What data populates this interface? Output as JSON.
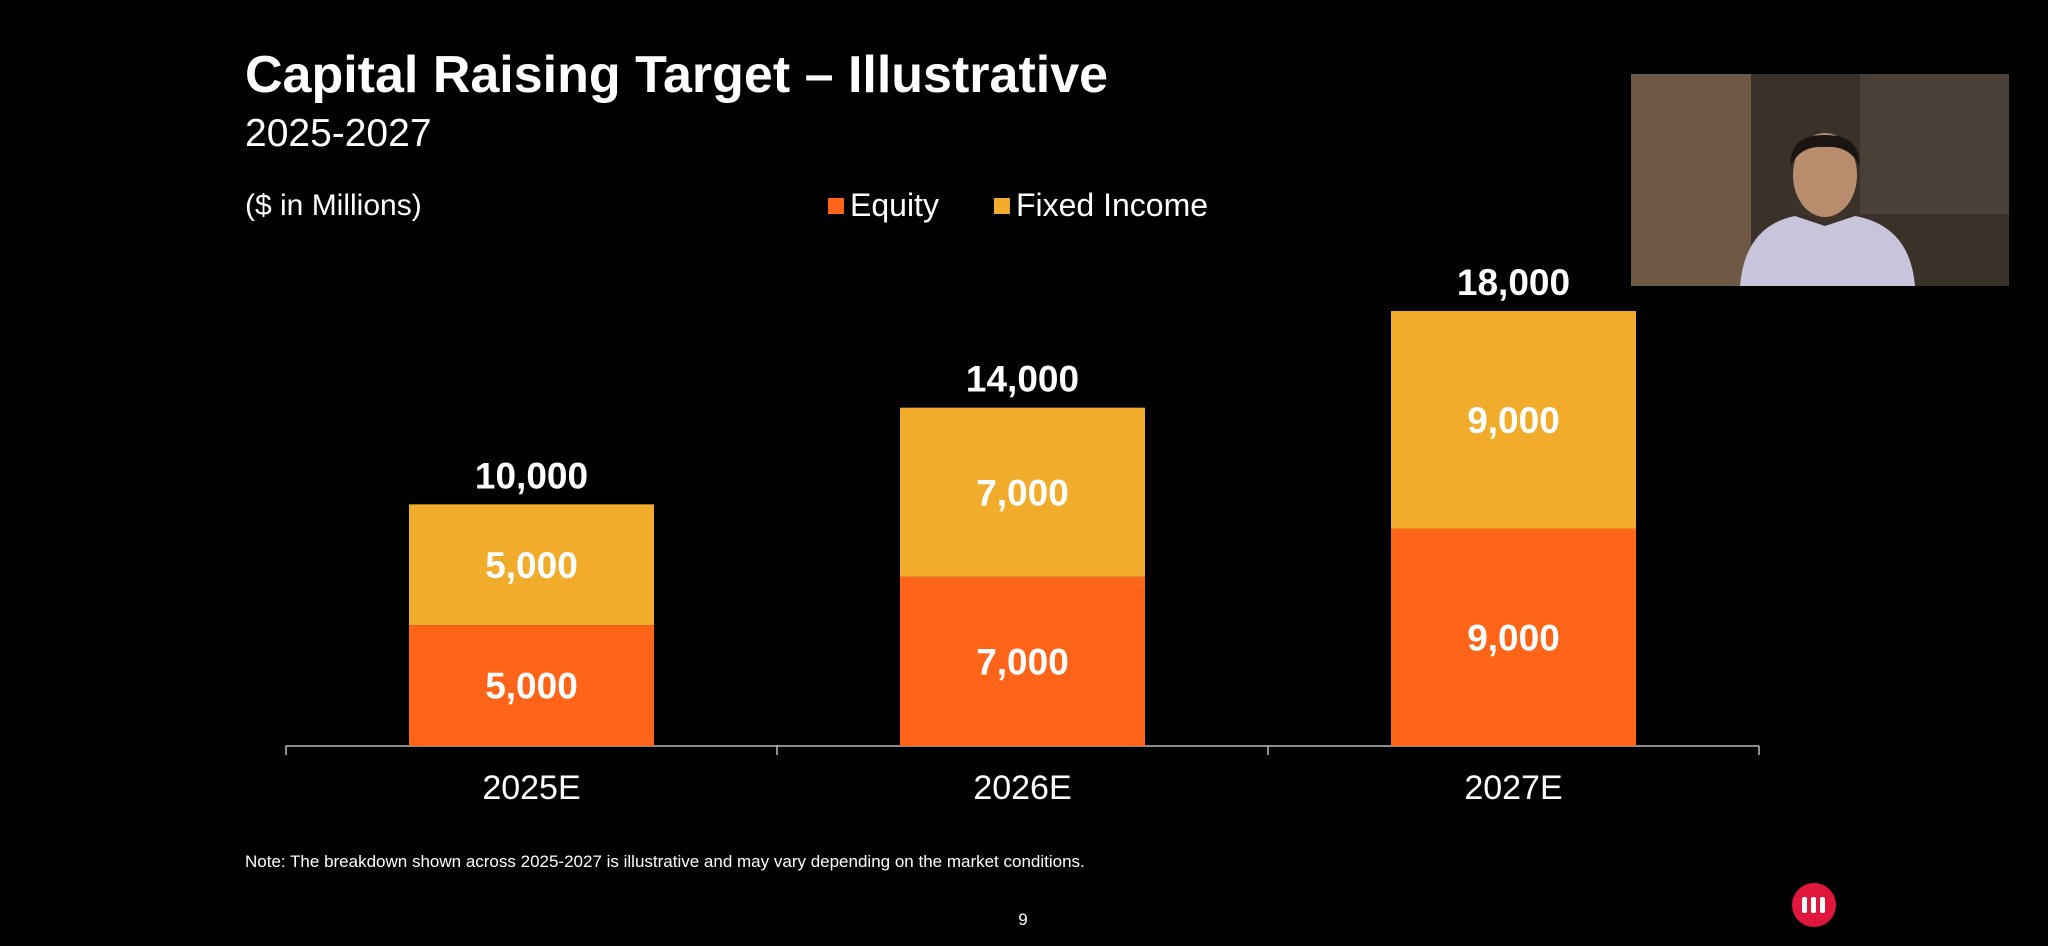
{
  "chart_data": {
    "type": "stacked_bar",
    "title": "Capital Raising Target – Illustrative",
    "subtitle": "2025-2027",
    "units_label": "($ in Millions)",
    "categories": [
      "2025E",
      "2026E",
      "2027E"
    ],
    "series": [
      {
        "name": "Equity",
        "color": "#ff6418",
        "values": [
          5000,
          7000,
          9000
        ],
        "value_labels": [
          "5,000",
          "7,000",
          "9,000"
        ]
      },
      {
        "name": "Fixed Income",
        "color": "#f2ac2c",
        "values": [
          5000,
          7000,
          9000
        ],
        "value_labels": [
          "5,000",
          "7,000",
          "9,000"
        ]
      }
    ],
    "totals": [
      10000,
      14000,
      18000
    ],
    "total_labels": [
      "10,000",
      "14,000",
      "18,000"
    ],
    "note": "Note: The breakdown shown across 2025-2027 is illustrative and may vary depending on the market conditions.",
    "page_number": "9"
  }
}
